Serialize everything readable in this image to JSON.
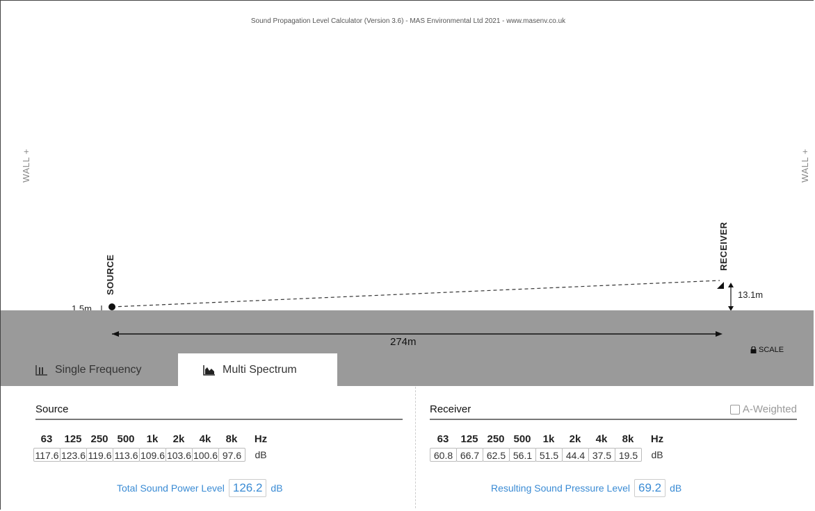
{
  "app": {
    "title": "Sound Propagation Level Calculator (Version 3.6) - MAS Environmental Ltd 2021 - www.masenv.co.uk"
  },
  "scene": {
    "wall_left": "WALL +",
    "wall_right": "WALL +",
    "source_label": "SOURCE",
    "receiver_label": "RECEIVER",
    "source_height": "1.5m",
    "receiver_height": "13.1m",
    "distance": "274m",
    "scale_label": "SCALE",
    "colors": {
      "ground": "#9a9a9a",
      "accent": "#3a8bd4"
    }
  },
  "tabs": [
    {
      "label": "Single Frequency",
      "icon": "bar-chart-simple-icon",
      "active": false
    },
    {
      "label": "Multi Spectrum",
      "icon": "bar-chart-filled-icon",
      "active": true
    }
  ],
  "source": {
    "heading": "Source",
    "frequencies": [
      "63",
      "125",
      "250",
      "500",
      "1k",
      "2k",
      "4k",
      "8k"
    ],
    "freq_unit": "Hz",
    "values": [
      "117.6",
      "123.6",
      "119.6",
      "113.6",
      "109.6",
      "103.6",
      "100.6",
      "97.6"
    ],
    "value_unit": "dB",
    "total_label": "Total Sound Power Level",
    "total_value": "126.2",
    "total_unit": "dB"
  },
  "receiver": {
    "heading": "Receiver",
    "a_weighted_label": "A-Weighted",
    "a_weighted_checked": false,
    "frequencies": [
      "63",
      "125",
      "250",
      "500",
      "1k",
      "2k",
      "4k",
      "8k"
    ],
    "freq_unit": "Hz",
    "values": [
      "60.8",
      "66.7",
      "62.5",
      "56.1",
      "51.5",
      "44.4",
      "37.5",
      "19.5"
    ],
    "value_unit": "dB",
    "total_label": "Resulting Sound Pressure Level",
    "total_value": "69.2",
    "total_unit": "dB"
  }
}
